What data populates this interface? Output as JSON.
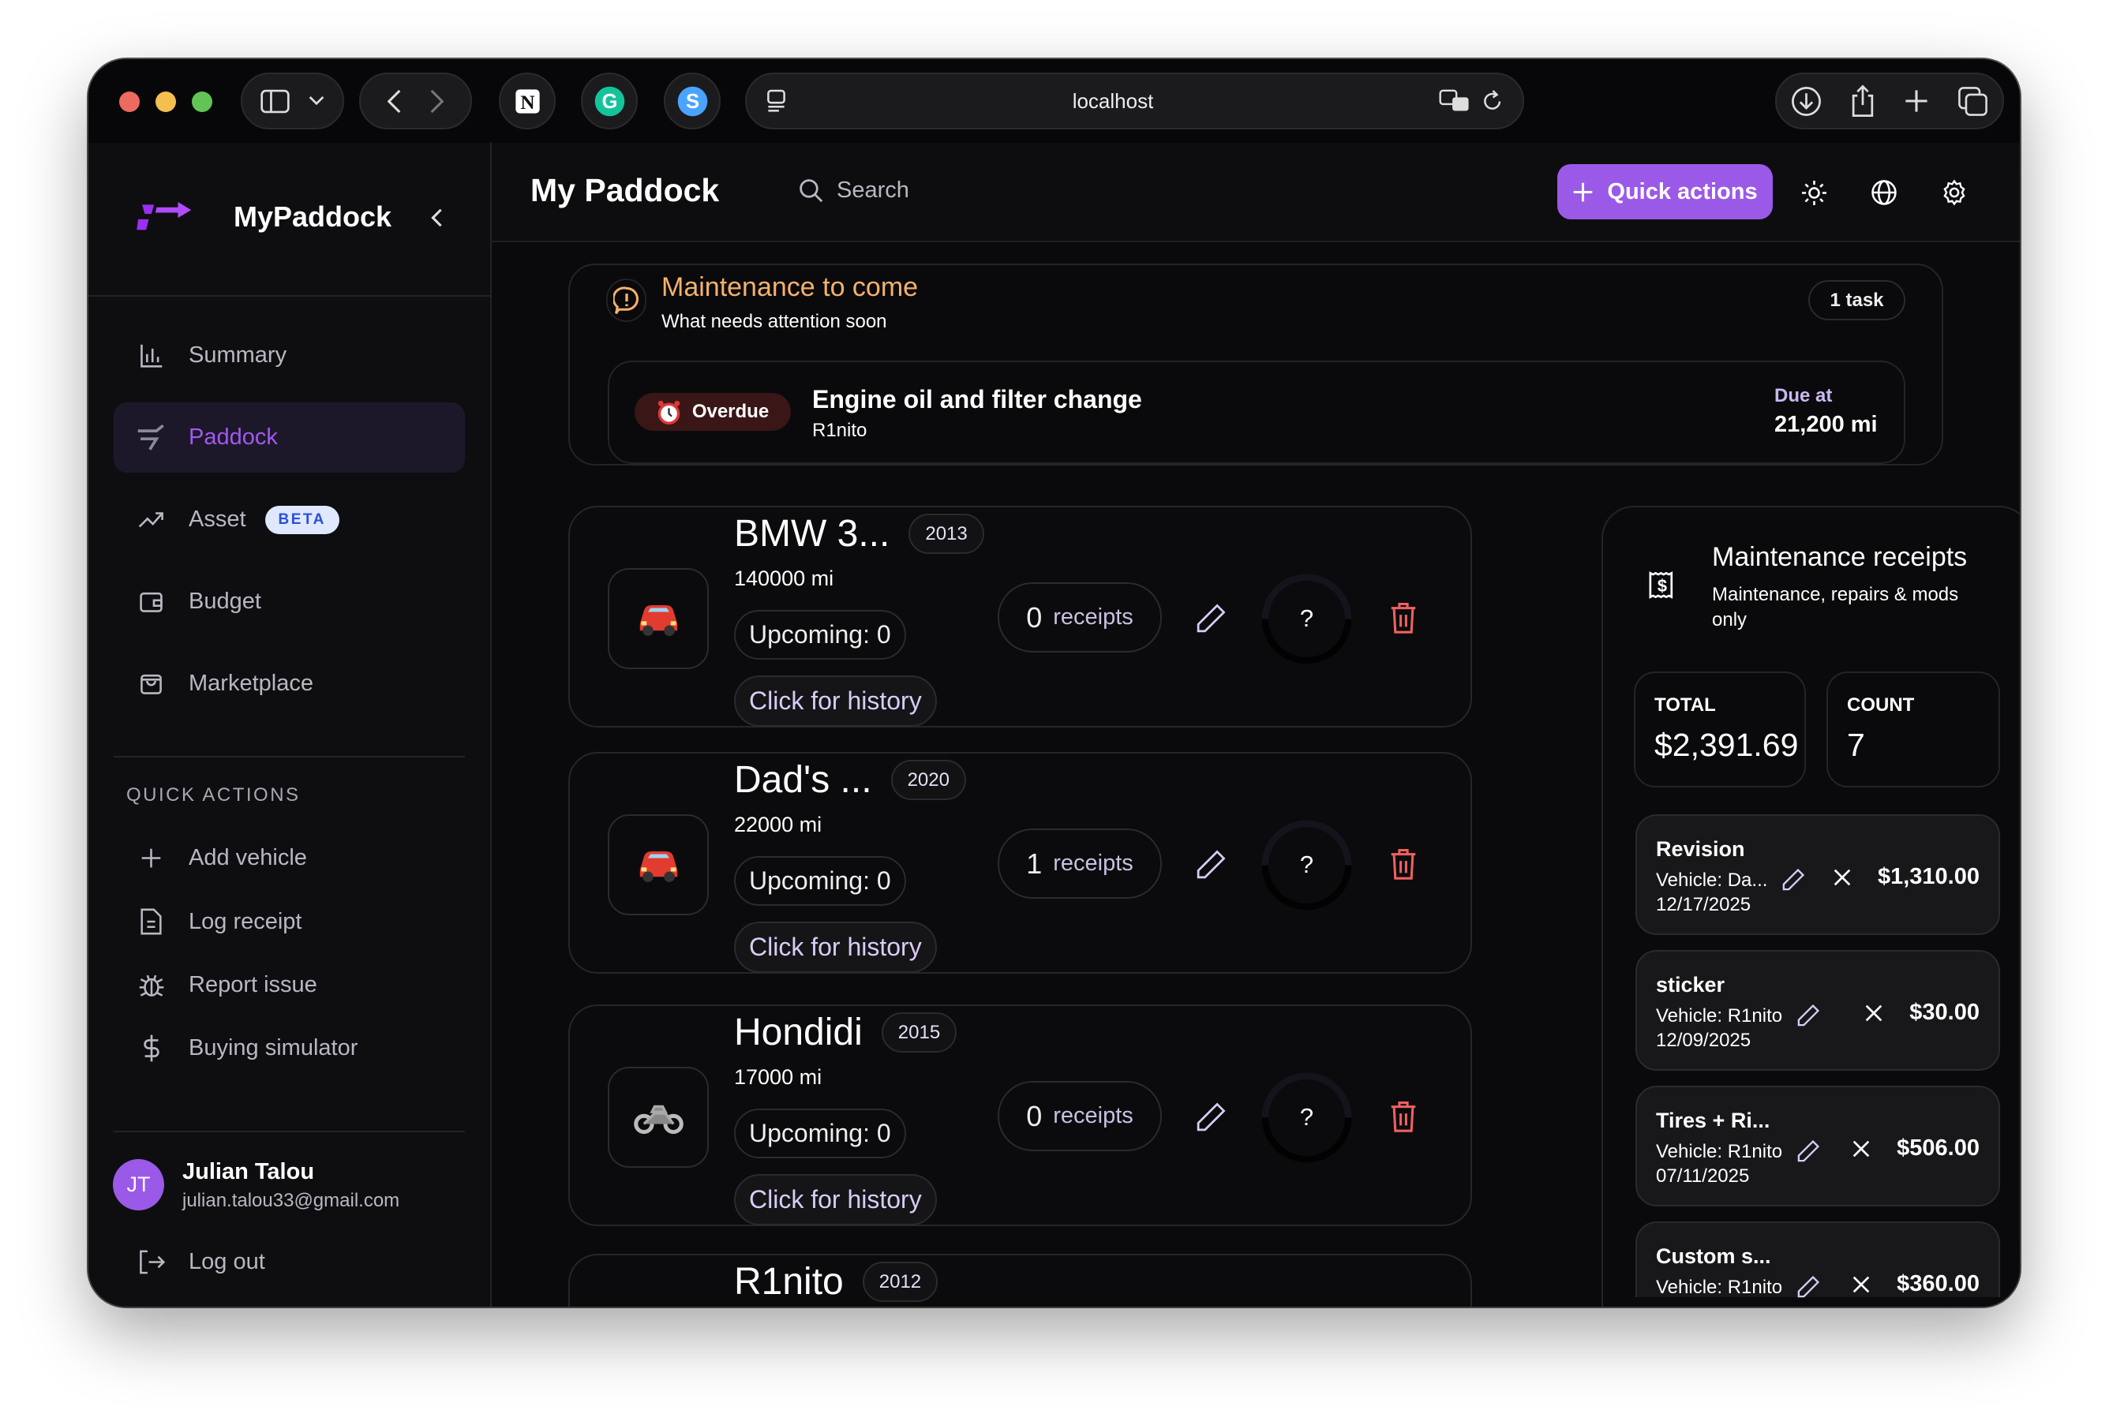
{
  "browser": {
    "url": "localhost",
    "colors": {
      "close": "#ec6a5e",
      "minimize": "#f4bf4f",
      "zoom": "#61c554"
    }
  },
  "sidebar": {
    "brand": "MyPaddock",
    "nav": [
      {
        "label": "Summary",
        "icon": "bar-chart-icon"
      },
      {
        "label": "Paddock",
        "icon": "wrench-icon",
        "active": true
      },
      {
        "label": "Asset",
        "icon": "trending-up-icon",
        "badge": "BETA"
      },
      {
        "label": "Budget",
        "icon": "wallet-icon"
      },
      {
        "label": "Marketplace",
        "icon": "shopping-bag-icon"
      }
    ],
    "quick_actions_title": "QUICK ACTIONS",
    "quick_actions": [
      {
        "label": "Add vehicle",
        "icon": "plus-icon"
      },
      {
        "label": "Log receipt",
        "icon": "file-text-icon"
      },
      {
        "label": "Report issue",
        "icon": "bug-icon"
      },
      {
        "label": "Buying simulator",
        "icon": "dollar-icon"
      }
    ],
    "user": {
      "initials": "JT",
      "name": "Julian Talou",
      "email": "julian.talou33@gmail.com"
    },
    "logout": "Log out"
  },
  "header": {
    "title": "My Paddock",
    "search_placeholder": "Search",
    "quick_actions": "Quick actions",
    "accent": "#9b59e8"
  },
  "maintenance": {
    "title": "Maintenance to come",
    "subtitle": "What needs attention soon",
    "count": "1 task",
    "task": {
      "status": "Overdue",
      "title": "Engine oil and filter change",
      "vehicle": "R1nito",
      "due_label": "Due at",
      "due_value": "21,200 mi"
    }
  },
  "vehicles": [
    {
      "name": "BMW 3...",
      "year": "2013",
      "mileage": "140000 mi",
      "upcoming": "Upcoming: 0",
      "history": "Click for history",
      "receipts_count": "0",
      "receipts_label": "receipts",
      "status": "?",
      "type": "car"
    },
    {
      "name": "Dad's ...",
      "year": "2020",
      "mileage": "22000 mi",
      "upcoming": "Upcoming: 0",
      "history": "Click for history",
      "receipts_count": "1",
      "receipts_label": "receipts",
      "status": "?",
      "type": "car"
    },
    {
      "name": "Hondidi",
      "year": "2015",
      "mileage": "17000 mi",
      "upcoming": "Upcoming: 0",
      "history": "Click for history",
      "receipts_count": "0",
      "receipts_label": "receipts",
      "status": "?",
      "type": "motorcycle"
    },
    {
      "name": "R1nito",
      "year": "2012"
    }
  ],
  "receipts": {
    "title": "Maintenance receipts",
    "subtitle": "Maintenance, repairs & mods only",
    "total_label": "TOTAL",
    "total": "$2,391.69",
    "count_label": "COUNT",
    "count": "7",
    "items": [
      {
        "title": "Revision",
        "vehicle": "Vehicle: Da...",
        "date": "12/17/2025",
        "amount": "$1,310.00"
      },
      {
        "title": "sticker",
        "vehicle": "Vehicle: R1nito",
        "date": "12/09/2025",
        "amount": "$30.00"
      },
      {
        "title": "Tires + Ri...",
        "vehicle": "Vehicle: R1nito",
        "date": "07/11/2025",
        "amount": "$506.00"
      },
      {
        "title": "Custom s...",
        "vehicle": "Vehicle: R1nito",
        "date": "",
        "amount": "$360.00"
      }
    ]
  }
}
